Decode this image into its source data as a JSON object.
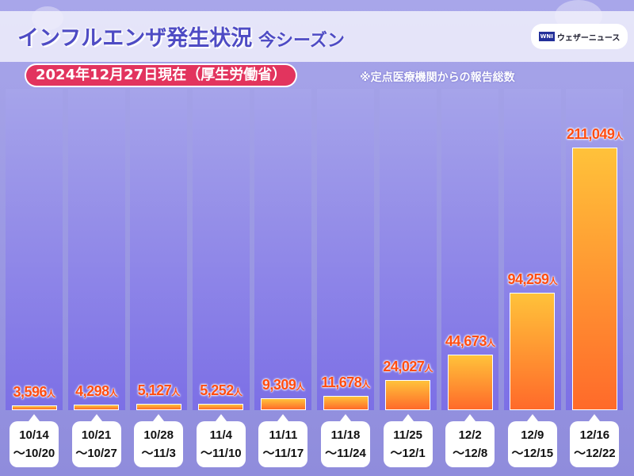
{
  "header": {
    "title": "インフルエンザ発生状況",
    "subtitle": "今シーズン",
    "logo": "ウェザーニュース",
    "logo_mark": "WNI",
    "date": "2024年12月27日現在（厚生労働省）",
    "note": "※定点医療機関からの報告総数"
  },
  "chart_data": {
    "type": "bar",
    "title": "インフルエンザ発生状況 今シーズン",
    "unit": "人",
    "categories": [
      "10/14\n～10/20",
      "10/21\n～10/27",
      "10/28\n～11/3",
      "11/4\n～11/10",
      "11/11\n～11/17",
      "11/18\n～11/24",
      "11/25\n～12/1",
      "12/2\n～12/8",
      "12/9\n～12/15",
      "12/16\n～12/22"
    ],
    "values": [
      3596,
      4298,
      5127,
      5252,
      9309,
      11678,
      24027,
      44673,
      94259,
      211049
    ],
    "colors": {
      "bar_top": "#ffc23a",
      "bar_bottom": "#ff6a2a",
      "label": "#ff4d12"
    }
  }
}
